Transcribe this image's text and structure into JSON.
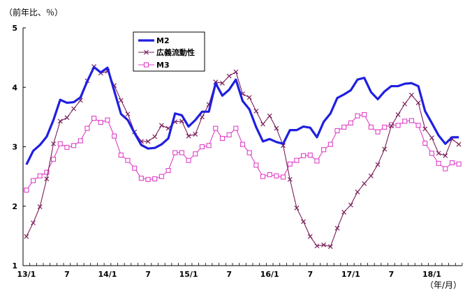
{
  "chart_data": {
    "type": "line",
    "title": "",
    "ylabel": "（前年比、％）",
    "xlabel": "（年/月）",
    "ylim": [
      1,
      5
    ],
    "yticks": [
      1,
      2,
      3,
      4,
      5
    ],
    "xtick_labels": [
      "13/1",
      "7",
      "14/1",
      "7",
      "15/1",
      "7",
      "16/1",
      "7",
      "17/1",
      "7",
      "18/1"
    ],
    "xtick_month_index": [
      0,
      6,
      12,
      18,
      24,
      30,
      36,
      42,
      48,
      54,
      60
    ],
    "grid": false,
    "legend_placement": "top-left",
    "x_start": "2013-01",
    "x_end": "2018-06",
    "series": [
      {
        "name": "M2",
        "color": "#1f1fe0",
        "marker": "none",
        "values": [
          2.7,
          2.93,
          3.03,
          3.17,
          3.45,
          3.79,
          3.74,
          3.75,
          3.83,
          4.1,
          4.34,
          4.25,
          4.33,
          3.94,
          3.55,
          3.45,
          3.23,
          3.03,
          2.97,
          2.98,
          3.04,
          3.14,
          3.56,
          3.53,
          3.34,
          3.45,
          3.59,
          3.59,
          4.07,
          3.86,
          3.96,
          4.13,
          3.77,
          3.63,
          3.33,
          3.09,
          3.13,
          3.08,
          3.05,
          3.28,
          3.28,
          3.34,
          3.32,
          3.16,
          3.42,
          3.56,
          3.82,
          3.88,
          3.95,
          4.13,
          4.16,
          3.92,
          3.8,
          3.93,
          4.02,
          4.02,
          4.06,
          4.07,
          4.02,
          3.6,
          3.4,
          3.19,
          3.05,
          3.16,
          3.16
        ]
      },
      {
        "name": "広義流動性",
        "color": "#7a1f5a",
        "marker": "x",
        "values": [
          1.49,
          1.72,
          1.99,
          2.46,
          3.05,
          3.43,
          3.49,
          3.64,
          3.78,
          4.11,
          4.35,
          4.24,
          4.27,
          4.03,
          3.78,
          3.55,
          3.25,
          3.09,
          3.09,
          3.17,
          3.36,
          3.31,
          3.42,
          3.43,
          3.18,
          3.21,
          3.5,
          3.71,
          4.09,
          4.07,
          4.19,
          4.26,
          3.89,
          3.83,
          3.6,
          3.38,
          3.52,
          3.31,
          3.02,
          2.45,
          1.97,
          1.74,
          1.49,
          1.33,
          1.35,
          1.32,
          1.63,
          1.9,
          2.02,
          2.24,
          2.38,
          2.51,
          2.7,
          2.96,
          3.35,
          3.54,
          3.72,
          3.87,
          3.74,
          3.3,
          3.15,
          2.89,
          2.85,
          3.13,
          3.04
        ]
      },
      {
        "name": "M3",
        "color": "#e040c8",
        "marker": "square",
        "values": [
          2.27,
          2.43,
          2.51,
          2.57,
          2.79,
          3.05,
          2.99,
          3.02,
          3.1,
          3.31,
          3.48,
          3.41,
          3.45,
          3.18,
          2.86,
          2.77,
          2.64,
          2.47,
          2.45,
          2.46,
          2.5,
          2.6,
          2.9,
          2.9,
          2.77,
          2.88,
          3.0,
          3.02,
          3.31,
          3.14,
          3.2,
          3.31,
          3.04,
          2.9,
          2.69,
          2.5,
          2.53,
          2.51,
          2.49,
          2.71,
          2.77,
          2.85,
          2.86,
          2.76,
          2.95,
          3.04,
          3.27,
          3.33,
          3.4,
          3.52,
          3.54,
          3.33,
          3.25,
          3.33,
          3.37,
          3.36,
          3.43,
          3.44,
          3.36,
          3.06,
          2.89,
          2.72,
          2.63,
          2.73,
          2.71
        ]
      }
    ]
  }
}
